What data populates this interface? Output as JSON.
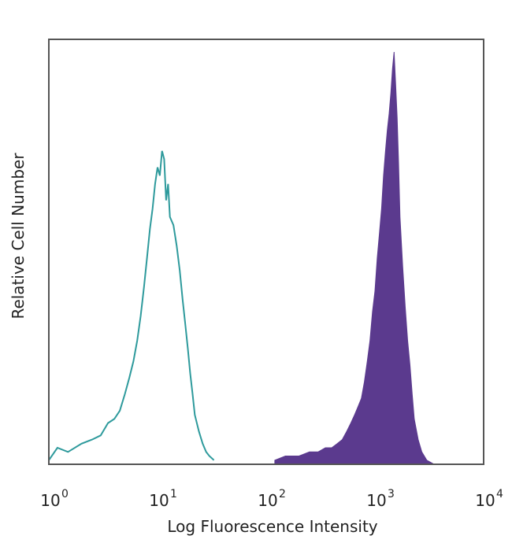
{
  "chart_data": {
    "type": "area",
    "xscale": "log10",
    "xlim": [
      1,
      10000
    ],
    "ylim": [
      0,
      100
    ],
    "grid": false,
    "legend": "none",
    "xlabel": "Log Fluorescence Intensity",
    "ylabel": "Relative Cell Number",
    "x_ticks": [
      {
        "base": "10",
        "exp": "0",
        "value": 1
      },
      {
        "base": "10",
        "exp": "1",
        "value": 10
      },
      {
        "base": "10",
        "exp": "2",
        "value": 100
      },
      {
        "base": "10",
        "exp": "3",
        "value": 1000
      },
      {
        "base": "10",
        "exp": "4",
        "value": 10000
      }
    ],
    "colors": {
      "isotype": "#2e9a9c",
      "stained": "#5b3a8e",
      "frame": "#555555"
    },
    "series": [
      {
        "style": "outline",
        "color": "#2e9a9c",
        "x": [
          1,
          1.2,
          1.5,
          2,
          2.5,
          3,
          3.5,
          4,
          4.5,
          5,
          5.5,
          6,
          6.5,
          7,
          7.5,
          8,
          8.5,
          9,
          9.5,
          10,
          10.5,
          11,
          11.5,
          12,
          12.5,
          13,
          14,
          15,
          16,
          17,
          18,
          19,
          20,
          21,
          22,
          24,
          26,
          28,
          30,
          33
        ],
        "y": [
          1,
          4,
          3,
          5,
          6,
          7,
          10,
          11,
          13,
          17,
          21,
          25,
          30,
          36,
          43,
          50,
          57,
          62,
          68,
          72,
          70,
          76,
          74,
          64,
          68,
          60,
          58,
          53,
          47,
          40,
          34,
          28,
          22,
          17,
          12,
          8,
          5,
          3,
          2,
          1
        ]
      },
      {
        "style": "filled",
        "color": "#5b3a8e",
        "x": [
          120,
          150,
          200,
          250,
          300,
          350,
          400,
          450,
          500,
          550,
          600,
          650,
          700,
          750,
          800,
          850,
          900,
          950,
          1000,
          1050,
          1100,
          1150,
          1200,
          1250,
          1300,
          1350,
          1400,
          1450,
          1500,
          1550,
          1600,
          1650,
          1700,
          1800,
          1900,
          2000,
          2100,
          2200,
          2300,
          2500,
          2700,
          3000,
          3500
        ],
        "y": [
          1,
          2,
          2,
          3,
          3,
          4,
          4,
          5,
          6,
          8,
          10,
          12,
          14,
          16,
          20,
          25,
          30,
          37,
          42,
          50,
          56,
          62,
          70,
          76,
          81,
          85,
          90,
          96,
          100,
          92,
          84,
          73,
          60,
          48,
          38,
          30,
          24,
          17,
          11,
          6,
          3,
          1,
          0
        ]
      }
    ]
  }
}
